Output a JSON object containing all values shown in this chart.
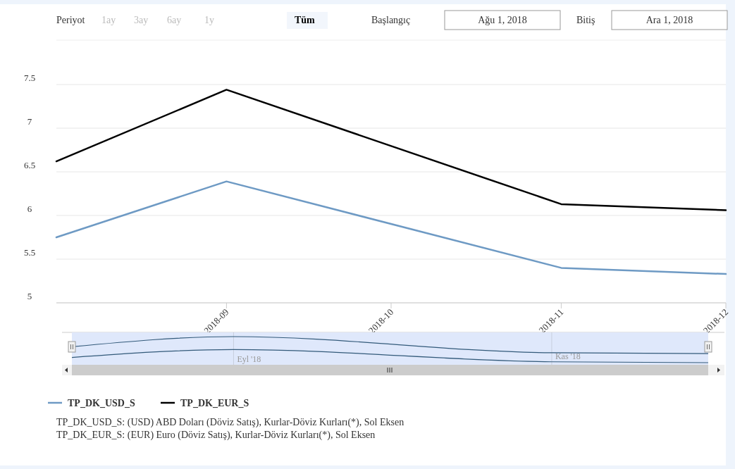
{
  "chart_data": {
    "type": "line",
    "x": [
      "2018-08",
      "2018-09",
      "2018-11",
      "2018-12"
    ],
    "series": [
      {
        "name": "TP_DK_USD_S",
        "color": "#6e9ac4",
        "values": [
          5.75,
          6.39,
          5.4,
          5.33
        ]
      },
      {
        "name": "TP_DK_EUR_S",
        "color": "#000000",
        "values": [
          6.62,
          7.44,
          6.13,
          6.06
        ]
      }
    ],
    "xlim": [
      "2018-08",
      "2018-12"
    ],
    "xticks": [
      "2018-09",
      "2018-10",
      "2018-11",
      "2018-12"
    ],
    "ylim": [
      5,
      7.5
    ],
    "yticks": [
      5,
      5.5,
      6,
      6.5,
      7,
      7.5
    ],
    "grid": "y",
    "legend": "bottom",
    "marker": "none",
    "line_style": "solid",
    "annotations": [
      "Periyot",
      "1ay",
      "3ay",
      "6ay",
      "1y",
      "Tüm",
      "Başlangıç",
      "Ağu 1, 2018",
      "Bitiş",
      "Ara 1, 2018",
      "Eyl '18",
      "Kas '18",
      "TP_DK_USD_S: (USD) ABD Doları (Döviz Satış), Kurlar-Döviz Kurları(*), Sol Eksen",
      "TP_DK_EUR_S: (EUR) Euro (Döviz Satış), Kurlar-Döviz Kurları(*), Sol Eksen"
    ]
  }
}
